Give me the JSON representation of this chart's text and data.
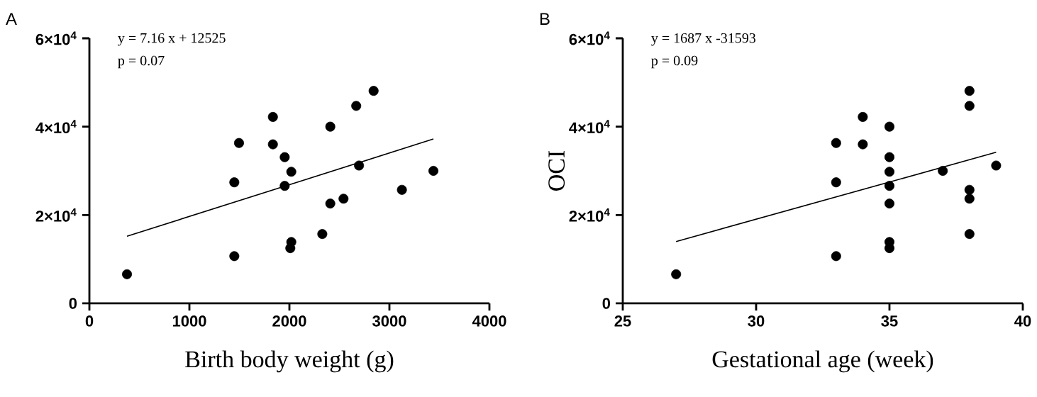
{
  "chart_data": [
    {
      "type": "scatter",
      "xlabel": "Birth body weight (g)",
      "annotations": [
        "A",
        "y = 7.16 x + 12525",
        "p = 0.07"
      ],
      "xlim": [
        0,
        4000
      ],
      "xticks": [
        0,
        1000,
        2000,
        3000,
        4000
      ],
      "ylim": [
        0,
        60000
      ],
      "yticks": [
        0,
        {
          "value": 20000,
          "label": "2×10$^{4}$"
        },
        {
          "value": 40000,
          "label": "4×10$^{4}$"
        },
        {
          "value": 60000,
          "label": "6×10$^{4}$"
        }
      ],
      "series": [
        {
          "color": "#000000",
          "marker": "circle",
          "x": [
            376,
            1449,
            1449,
            1496,
            1835,
            1835,
            1953,
            1953,
            2019,
            2019,
            2009,
            2329,
            2409,
            2409,
            2541,
            2668,
            2696,
            2842,
            3125,
            3440
          ],
          "values": [
            6600,
            10700,
            27400,
            36300,
            42200,
            36000,
            33100,
            26600,
            29800,
            13900,
            12500,
            15700,
            22600,
            40000,
            23700,
            44700,
            31200,
            48100,
            25700,
            30000
          ]
        },
        {
          "type": "line",
          "color": "#000000",
          "marker": "none",
          "x": [
            376,
            3440
          ],
          "values": [
            15200,
            37200
          ]
        }
      ]
    },
    {
      "type": "scatter",
      "xlabel": "Gestational age (week)",
      "ylabel": "OCI",
      "annotations": [
        "B",
        "y = 1687 x -31593",
        "p = 0.09"
      ],
      "xlim": [
        25,
        40
      ],
      "xticks": [
        25,
        30,
        35,
        40
      ],
      "ylim": [
        0,
        60000
      ],
      "yticks": [
        0,
        {
          "value": 20000,
          "label": "2×10$^{4}$"
        },
        {
          "value": 40000,
          "label": "4×10$^{4}$"
        },
        {
          "value": 60000,
          "label": "6×10$^{4}$"
        }
      ],
      "series": [
        {
          "color": "#000000",
          "marker": "circle",
          "x": [
            27,
            33,
            33,
            33,
            34,
            34,
            35,
            35,
            35,
            35,
            35,
            35,
            35,
            37,
            38,
            38,
            38,
            38,
            38,
            39
          ],
          "values": [
            6600,
            10700,
            27400,
            36300,
            42200,
            36000,
            40000,
            33100,
            29800,
            26600,
            22600,
            13900,
            12500,
            30000,
            48100,
            44700,
            25700,
            23700,
            15700,
            31200
          ]
        },
        {
          "type": "line",
          "color": "#000000",
          "marker": "none",
          "x": [
            27,
            39
          ],
          "values": [
            14000,
            34200
          ]
        }
      ]
    }
  ]
}
